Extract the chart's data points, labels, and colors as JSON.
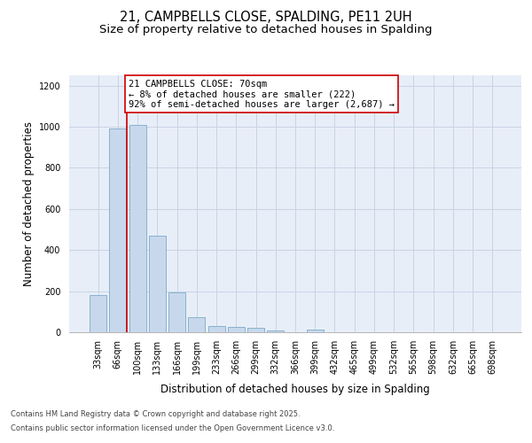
{
  "title_line1": "21, CAMPBELLS CLOSE, SPALDING, PE11 2UH",
  "title_line2": "Size of property relative to detached houses in Spalding",
  "xlabel": "Distribution of detached houses by size in Spalding",
  "ylabel": "Number of detached properties",
  "categories": [
    "33sqm",
    "66sqm",
    "100sqm",
    "133sqm",
    "166sqm",
    "199sqm",
    "233sqm",
    "266sqm",
    "299sqm",
    "332sqm",
    "366sqm",
    "399sqm",
    "432sqm",
    "465sqm",
    "499sqm",
    "532sqm",
    "565sqm",
    "598sqm",
    "632sqm",
    "665sqm",
    "698sqm"
  ],
  "values": [
    180,
    990,
    1010,
    470,
    195,
    75,
    30,
    25,
    20,
    10,
    0,
    15,
    0,
    0,
    0,
    0,
    0,
    0,
    0,
    0,
    0
  ],
  "bar_color": "#c8d8ec",
  "bar_edge_color": "#7aaac8",
  "grid_color": "#c8d4e4",
  "background_color": "#e8eef8",
  "annotation_text": "21 CAMPBELLS CLOSE: 70sqm\n← 8% of detached houses are smaller (222)\n92% of semi-detached houses are larger (2,687) →",
  "vline_color": "#cc0000",
  "annotation_box_edge": "#cc0000",
  "ylim": [
    0,
    1250
  ],
  "yticks": [
    0,
    200,
    400,
    600,
    800,
    1000,
    1200
  ],
  "footer_line1": "Contains HM Land Registry data © Crown copyright and database right 2025.",
  "footer_line2": "Contains public sector information licensed under the Open Government Licence v3.0.",
  "title_fontsize": 10.5,
  "subtitle_fontsize": 9.5,
  "axis_label_fontsize": 8.5,
  "tick_fontsize": 7,
  "annotation_fontsize": 7.5,
  "footer_fontsize": 6
}
